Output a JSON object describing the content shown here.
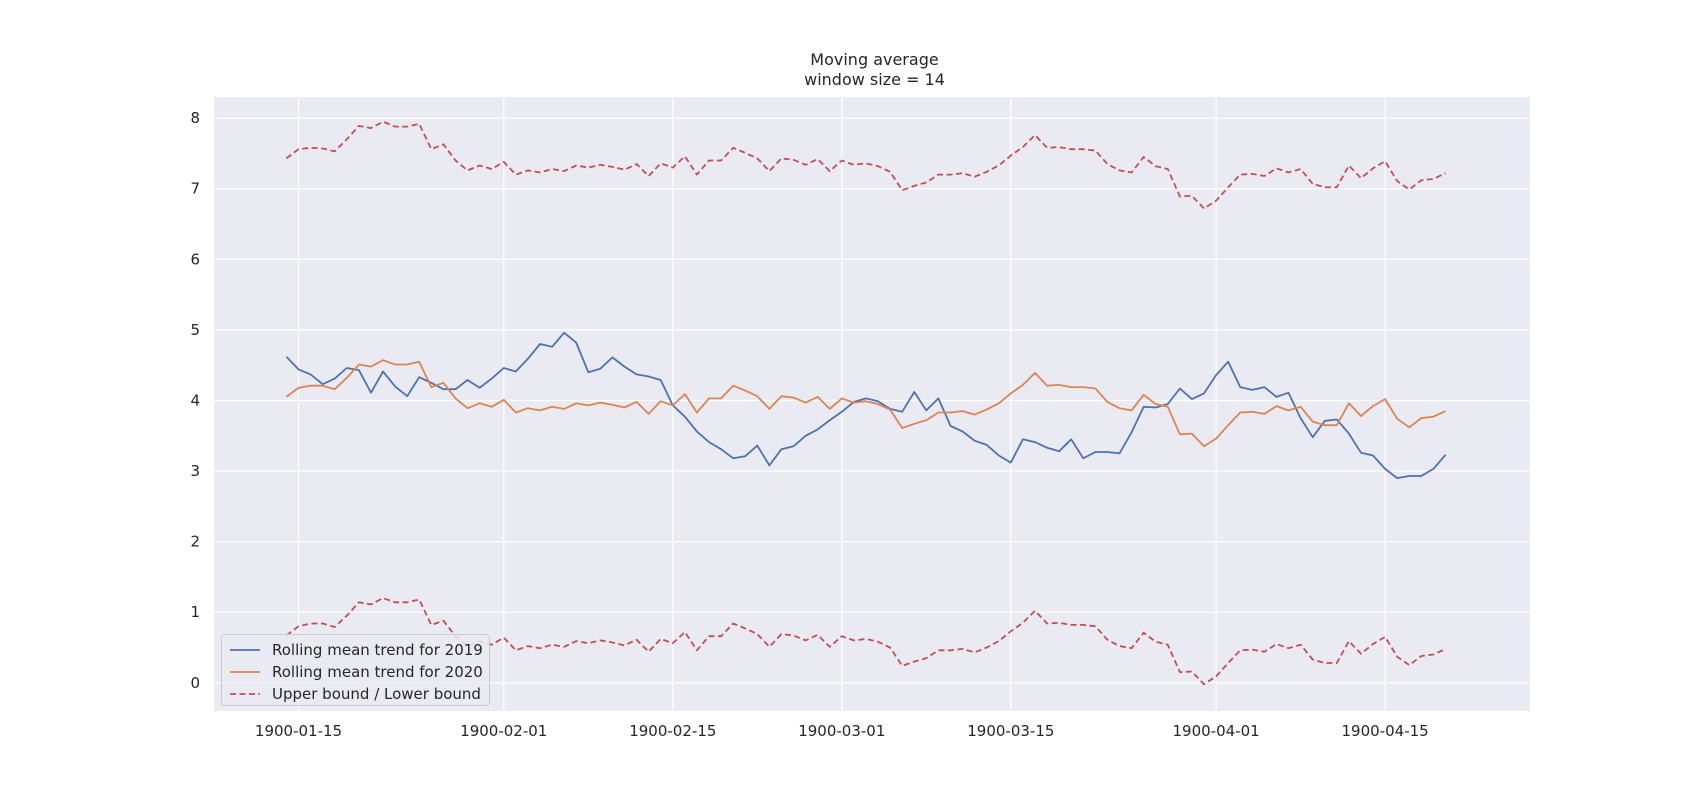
{
  "chart_data": {
    "type": "line",
    "title": "Moving average\nwindow size = 14",
    "xlabel": "",
    "ylabel": "",
    "x_start": "1900-01-14",
    "xlim": [
      "1900-01-08",
      "1900-04-27"
    ],
    "ylim": [
      -0.4,
      8.3
    ],
    "yticks": [
      0,
      1,
      2,
      3,
      4,
      5,
      6,
      7,
      8
    ],
    "xticks": [
      "1900-01-15",
      "1900-02-01",
      "1900-02-15",
      "1900-03-01",
      "1900-03-15",
      "1900-04-01",
      "1900-04-15"
    ],
    "grid": true,
    "legend_position": "lower-left",
    "background": "#eaeaf2",
    "series": [
      {
        "name": "Rolling mean trend for 2019",
        "color": "#4c72b0",
        "style": "solid",
        "values": [
          4.62,
          4.44,
          4.37,
          4.23,
          4.31,
          4.46,
          4.43,
          4.11,
          4.41,
          4.2,
          4.06,
          4.33,
          4.25,
          4.16,
          4.16,
          4.29,
          4.18,
          4.31,
          4.46,
          4.41,
          4.59,
          4.8,
          4.76,
          4.96,
          4.82,
          4.4,
          4.45,
          4.61,
          4.48,
          4.37,
          4.34,
          4.29,
          3.93,
          3.77,
          3.56,
          3.41,
          3.31,
          3.18,
          3.21,
          3.36,
          3.08,
          3.31,
          3.35,
          3.5,
          3.59,
          3.72,
          3.84,
          3.98,
          4.03,
          3.99,
          3.88,
          3.84,
          4.12,
          3.86,
          4.03,
          3.64,
          3.56,
          3.43,
          3.37,
          3.22,
          3.12,
          3.45,
          3.41,
          3.33,
          3.28,
          3.45,
          3.18,
          3.27,
          3.27,
          3.25,
          3.55,
          3.91,
          3.9,
          3.95,
          4.17,
          4.02,
          4.1,
          4.36,
          4.55,
          4.19,
          4.15,
          4.19,
          4.05,
          4.11,
          3.75,
          3.48,
          3.71,
          3.73,
          3.53,
          3.26,
          3.22,
          3.03,
          2.9,
          2.93,
          2.93,
          3.03,
          3.23
        ]
      },
      {
        "name": "Rolling mean trend for 2020",
        "color": "#dd8452",
        "style": "solid",
        "values": [
          4.05,
          4.18,
          4.21,
          4.21,
          4.16,
          4.32,
          4.51,
          4.48,
          4.57,
          4.51,
          4.51,
          4.55,
          4.19,
          4.25,
          4.03,
          3.89,
          3.96,
          3.91,
          4.01,
          3.83,
          3.89,
          3.86,
          3.91,
          3.88,
          3.96,
          3.93,
          3.97,
          3.94,
          3.9,
          3.98,
          3.81,
          3.99,
          3.93,
          4.09,
          3.83,
          4.03,
          4.03,
          4.21,
          4.14,
          4.06,
          3.88,
          4.06,
          4.04,
          3.97,
          4.05,
          3.88,
          4.03,
          3.97,
          3.99,
          3.95,
          3.87,
          3.61,
          3.67,
          3.72,
          3.83,
          3.83,
          3.85,
          3.8,
          3.87,
          3.96,
          4.1,
          4.22,
          4.39,
          4.21,
          4.22,
          4.19,
          4.19,
          4.17,
          3.98,
          3.89,
          3.86,
          4.08,
          3.95,
          3.91,
          3.52,
          3.53,
          3.35,
          3.46,
          3.65,
          3.83,
          3.84,
          3.81,
          3.92,
          3.86,
          3.91,
          3.7,
          3.65,
          3.65,
          3.96,
          3.78,
          3.92,
          4.02,
          3.74,
          3.62,
          3.75,
          3.77,
          3.85
        ]
      },
      {
        "name": "Upper bound / Lower bound",
        "color": "#c44e52",
        "style": "dashed",
        "values": [
          7.43,
          7.56,
          7.58,
          7.57,
          7.53,
          7.7,
          7.89,
          7.86,
          7.95,
          7.88,
          7.88,
          7.92,
          7.56,
          7.63,
          7.4,
          7.26,
          7.33,
          7.28,
          7.38,
          7.2,
          7.26,
          7.23,
          7.28,
          7.25,
          7.33,
          7.3,
          7.34,
          7.31,
          7.27,
          7.35,
          7.18,
          7.36,
          7.3,
          7.46,
          7.2,
          7.4,
          7.4,
          7.58,
          7.51,
          7.43,
          7.25,
          7.43,
          7.41,
          7.34,
          7.42,
          7.25,
          7.4,
          7.34,
          7.36,
          7.32,
          7.24,
          6.98,
          7.04,
          7.09,
          7.2,
          7.2,
          7.22,
          7.17,
          7.24,
          7.33,
          7.47,
          7.59,
          7.76,
          7.58,
          7.59,
          7.56,
          7.56,
          7.54,
          7.35,
          7.26,
          7.23,
          7.45,
          7.32,
          7.28,
          6.89,
          6.9,
          6.72,
          6.83,
          7.02,
          7.2,
          7.21,
          7.18,
          7.29,
          7.23,
          7.28,
          7.07,
          7.02,
          7.02,
          7.33,
          7.15,
          7.29,
          7.39,
          7.11,
          6.99,
          7.12,
          7.14,
          7.22
        ]
      },
      {
        "name": "Lower bound",
        "color": "#c44e52",
        "style": "dashed",
        "values": [
          0.67,
          0.8,
          0.84,
          0.84,
          0.79,
          0.95,
          1.14,
          1.11,
          1.2,
          1.14,
          1.14,
          1.18,
          0.82,
          0.88,
          0.66,
          0.52,
          0.59,
          0.54,
          0.64,
          0.46,
          0.52,
          0.49,
          0.54,
          0.51,
          0.59,
          0.56,
          0.6,
          0.57,
          0.53,
          0.61,
          0.44,
          0.62,
          0.56,
          0.72,
          0.46,
          0.66,
          0.66,
          0.84,
          0.77,
          0.69,
          0.51,
          0.69,
          0.67,
          0.6,
          0.68,
          0.51,
          0.66,
          0.6,
          0.62,
          0.58,
          0.5,
          0.24,
          0.3,
          0.35,
          0.46,
          0.46,
          0.48,
          0.43,
          0.5,
          0.59,
          0.73,
          0.85,
          1.02,
          0.84,
          0.85,
          0.82,
          0.82,
          0.8,
          0.61,
          0.52,
          0.49,
          0.71,
          0.58,
          0.54,
          0.15,
          0.16,
          -0.02,
          0.09,
          0.28,
          0.46,
          0.47,
          0.44,
          0.55,
          0.49,
          0.54,
          0.33,
          0.28,
          0.28,
          0.59,
          0.41,
          0.55,
          0.65,
          0.37,
          0.25,
          0.38,
          0.4,
          0.48
        ]
      }
    ]
  }
}
